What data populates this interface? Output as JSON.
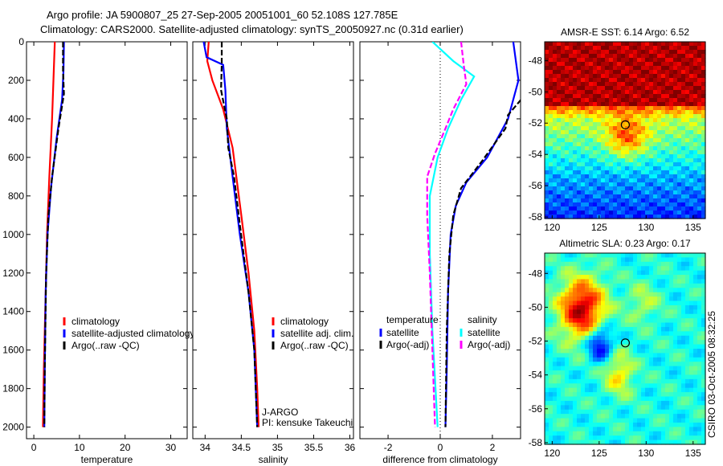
{
  "title_line1": "Argo profile: JA 5900807_25 27-Sep-2005 20051001_60 52.108S 127.785E",
  "title_line2": "Climatology: CARS2000. Satellite-adjusted climatology: synTS_20050927.nc (0.31d earlier)",
  "side_label": "CSIRO 03-Oct-2005 08:32:25",
  "pi_line1": "J-ARGO",
  "pi_line2": "PI: kensuke Takeuchi",
  "chart_data": [
    {
      "type": "line",
      "xlabel": "temperature",
      "ylabel": "",
      "xlim": [
        -1.6,
        33.6
      ],
      "ylim": [
        2060,
        0
      ],
      "xticks": [
        "0",
        "10",
        "20",
        "30"
      ],
      "xtick_values": [
        0,
        10,
        20,
        30
      ],
      "yticks": [
        "0",
        "200",
        "400",
        "600",
        "800",
        "1000",
        "1200",
        "1400",
        "1600",
        "1800",
        "2000"
      ],
      "legend": [
        "climatology",
        "satellite-adjusted climatology",
        "Argo(..raw -QC)"
      ],
      "series": [
        {
          "name": "climatology",
          "color": "#ff0000",
          "dash": false,
          "points": [
            [
              4.6,
              0
            ],
            [
              4.3,
              200
            ],
            [
              4.0,
              400
            ],
            [
              3.4,
              700
            ],
            [
              2.9,
              1000
            ],
            [
              2.5,
              1400
            ],
            [
              2.2,
              1700
            ],
            [
              2.0,
              2000
            ]
          ]
        },
        {
          "name": "satellite-adjusted climatology",
          "color": "#0000ff",
          "dash": false,
          "points": [
            [
              6.6,
              0
            ],
            [
              6.5,
              150
            ],
            [
              6.2,
              300
            ],
            [
              5.0,
              500
            ],
            [
              3.8,
              750
            ],
            [
              3.0,
              1000
            ],
            [
              2.6,
              1300
            ],
            [
              2.4,
              1700
            ],
            [
              2.3,
              2000
            ]
          ]
        },
        {
          "name": "Argo(..raw -QC)",
          "color": "#000000",
          "dash": true,
          "points": [
            [
              6.4,
              0
            ],
            [
              6.4,
              150
            ],
            [
              6.6,
              270
            ],
            [
              5.4,
              450
            ],
            [
              4.0,
              700
            ],
            [
              3.2,
              900
            ],
            [
              2.7,
              1200
            ],
            [
              2.4,
              1700
            ],
            [
              2.3,
              2000
            ]
          ]
        }
      ]
    },
    {
      "type": "line",
      "xlabel": "salinity",
      "xlim": [
        33.83,
        36.05
      ],
      "ylim": [
        2060,
        0
      ],
      "xticks": [
        "34",
        "34.5",
        "35",
        "35.5",
        "36"
      ],
      "xtick_values": [
        34,
        34.5,
        35,
        35.5,
        36
      ],
      "legend": [
        "climatology",
        "satellite adj. clim.",
        "Argo(..raw -QC)"
      ],
      "series": [
        {
          "name": "climatology",
          "color": "#ff0000",
          "dash": false,
          "points": [
            [
              34.05,
              0
            ],
            [
              34.03,
              100
            ],
            [
              34.1,
              200
            ],
            [
              34.25,
              350
            ],
            [
              34.38,
              550
            ],
            [
              34.5,
              900
            ],
            [
              34.6,
              1200
            ],
            [
              34.68,
              1500
            ],
            [
              34.72,
              1800
            ],
            [
              34.74,
              2000
            ]
          ]
        },
        {
          "name": "satellite adj. clim.",
          "color": "#0000ff",
          "dash": false,
          "points": [
            [
              33.98,
              0
            ],
            [
              34.02,
              80
            ],
            [
              34.25,
              120
            ],
            [
              34.28,
              250
            ],
            [
              34.3,
              450
            ],
            [
              34.38,
              700
            ],
            [
              34.48,
              1000
            ],
            [
              34.6,
              1300
            ],
            [
              34.68,
              1600
            ],
            [
              34.72,
              2000
            ]
          ]
        },
        {
          "name": "Argo(..raw -QC)",
          "color": "#000000",
          "dash": true,
          "points": [
            [
              34.23,
              0
            ],
            [
              34.23,
              120
            ],
            [
              34.22,
              250
            ],
            [
              34.3,
              400
            ],
            [
              34.32,
              550
            ],
            [
              34.4,
              700
            ],
            [
              34.48,
              950
            ],
            [
              34.6,
              1300
            ],
            [
              34.68,
              1600
            ],
            [
              34.72,
              2000
            ]
          ]
        }
      ]
    },
    {
      "type": "line",
      "xlabel": "difference from climatology",
      "xlim": [
        -3.08,
        3.08
      ],
      "ylim": [
        2060,
        0
      ],
      "xticks": [
        "-2",
        "0",
        "2"
      ],
      "xtick_values": [
        -2,
        0,
        2
      ],
      "legend_temperature": {
        "heading": "temperature",
        "items": [
          "satellite",
          "Argo(-adj)"
        ]
      },
      "legend_salinity": {
        "heading": "salinity",
        "items": [
          "satellite",
          "Argo(-adj)"
        ]
      },
      "series": [
        {
          "name": "temperature satellite",
          "color": "#0000ff",
          "dash": false,
          "points": [
            [
              2.8,
              0
            ],
            [
              3.0,
              200
            ],
            [
              2.6,
              400
            ],
            [
              1.8,
              600
            ],
            [
              1.0,
              730
            ],
            [
              0.6,
              850
            ],
            [
              0.4,
              1000
            ],
            [
              0.3,
              1300
            ],
            [
              0.25,
              1700
            ],
            [
              0.2,
              2000
            ]
          ]
        },
        {
          "name": "temperature Argo(-adj)",
          "color": "#000000",
          "dash": true,
          "points": [
            [
              3.1,
              300
            ],
            [
              2.6,
              380
            ],
            [
              2.5,
              450
            ],
            [
              1.6,
              620
            ],
            [
              0.8,
              760
            ],
            [
              0.5,
              900
            ],
            [
              0.35,
              1100
            ],
            [
              0.25,
              1500
            ],
            [
              0.2,
              2000
            ]
          ]
        },
        {
          "name": "salinity satellite",
          "color": "#00ffff",
          "dash": false,
          "points": [
            [
              -0.3,
              0
            ],
            [
              0.5,
              100
            ],
            [
              1.3,
              180
            ],
            [
              0.8,
              300
            ],
            [
              0.3,
              450
            ],
            [
              -0.1,
              600
            ],
            [
              -0.4,
              800
            ],
            [
              -0.4,
              1100
            ],
            [
              -0.3,
              1500
            ],
            [
              -0.1,
              2000
            ]
          ]
        },
        {
          "name": "salinity Argo(-adj)",
          "color": "#ff00ff",
          "dash": true,
          "points": [
            [
              0.8,
              0
            ],
            [
              0.9,
              120
            ],
            [
              1.0,
              220
            ],
            [
              0.5,
              350
            ],
            [
              0.2,
              450
            ],
            [
              -0.2,
              580
            ],
            [
              -0.5,
              700
            ],
            [
              -0.5,
              900
            ],
            [
              -0.4,
              1200
            ],
            [
              -0.3,
              1600
            ],
            [
              -0.2,
              2000
            ]
          ]
        }
      ]
    },
    {
      "type": "heatmap",
      "title": "AMSR-E SST: 6.14 Argo: 6.52",
      "xticks": [
        "120",
        "125",
        "130",
        "135"
      ],
      "yticks": [
        "-48",
        "-50",
        "-52",
        "-54",
        "-56",
        "-58"
      ],
      "xlim": [
        119.2,
        136.3
      ],
      "ylim": [
        -58.1,
        -46.8
      ],
      "marker": [
        127.785,
        -52.108
      ]
    },
    {
      "type": "heatmap",
      "title": "Altimetric SLA: 0.23 Argo: 0.17",
      "xticks": [
        "120",
        "125",
        "130",
        "135"
      ],
      "yticks": [
        "-48",
        "-50",
        "-52",
        "-54",
        "-56",
        "-58"
      ],
      "xlim": [
        119.2,
        136.3
      ],
      "ylim": [
        -58.1,
        -46.8
      ],
      "marker": [
        127.785,
        -52.108
      ]
    }
  ]
}
